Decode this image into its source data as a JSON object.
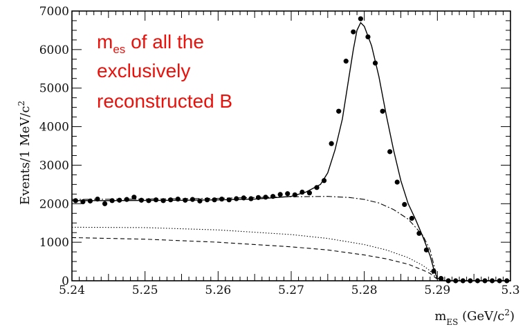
{
  "chart_data": {
    "type": "scatter",
    "title": "",
    "xlabel_main": "m",
    "xlabel_sub": "ES",
    "xlabel_unit_pre": " (GeV/c",
    "xlabel_unit_sup": "2",
    "xlabel_unit_post": ")",
    "ylabel_main": "Events/1 MeV/c",
    "ylabel_sup": "2",
    "xlim": [
      5.24,
      5.3
    ],
    "ylim": [
      0,
      7000
    ],
    "x_ticks": [
      "5.24",
      "5.25",
      "5.26",
      "5.27",
      "5.28",
      "5.29",
      "5.3"
    ],
    "y_ticks": [
      "0",
      "1000",
      "2000",
      "3000",
      "4000",
      "5000",
      "6000",
      "7000"
    ],
    "annotation": {
      "line1_main": "m",
      "line1_sub": "es",
      "line1_rest": " of all the",
      "line2": "exclusively",
      "line3": "reconstructed B"
    },
    "series": [
      {
        "style": "points",
        "x": [
          5.2405,
          5.2415,
          5.2425,
          5.2435,
          5.2445,
          5.2455,
          5.2465,
          5.2475,
          5.2485,
          5.2495,
          5.2505,
          5.2515,
          5.2525,
          5.2535,
          5.2545,
          5.2555,
          5.2565,
          5.2575,
          5.2585,
          5.2595,
          5.2605,
          5.2615,
          5.2625,
          5.2635,
          5.2645,
          5.2655,
          5.2665,
          5.2675,
          5.2685,
          5.2695,
          5.2705,
          5.2715,
          5.2725,
          5.2735,
          5.2745,
          5.2755,
          5.2765,
          5.2775,
          5.2785,
          5.2795,
          5.2805,
          5.2815,
          5.2825,
          5.2835,
          5.2845,
          5.2855,
          5.2865,
          5.2875,
          5.2885,
          5.2895,
          5.2905,
          5.2915,
          5.2925,
          5.2935,
          5.2945,
          5.2955,
          5.2965,
          5.2975,
          5.2985,
          5.2995
        ],
        "y": [
          2080,
          2050,
          2070,
          2120,
          2000,
          2080,
          2090,
          2110,
          2170,
          2090,
          2080,
          2100,
          2080,
          2100,
          2120,
          2090,
          2110,
          2070,
          2100,
          2100,
          2120,
          2100,
          2130,
          2150,
          2130,
          2160,
          2170,
          2190,
          2240,
          2260,
          2230,
          2300,
          2280,
          2420,
          2600,
          3560,
          4400,
          5700,
          6460,
          6800,
          6330,
          5650,
          4400,
          3350,
          2560,
          1980,
          1620,
          1230,
          800,
          250,
          60,
          0,
          0,
          0,
          0,
          0,
          0,
          0,
          0,
          0
        ]
      },
      {
        "style": "solid",
        "x": [
          5.24,
          5.245,
          5.25,
          5.255,
          5.26,
          5.265,
          5.268,
          5.27,
          5.272,
          5.274,
          5.275,
          5.276,
          5.277,
          5.278,
          5.2785,
          5.279,
          5.2795,
          5.28,
          5.281,
          5.282,
          5.283,
          5.284,
          5.285,
          5.286,
          5.287,
          5.288,
          5.289,
          5.2895,
          5.29,
          5.291,
          5.3
        ],
        "y": [
          2080,
          2080,
          2085,
          2090,
          2100,
          2120,
          2160,
          2190,
          2300,
          2500,
          2800,
          3400,
          4200,
          5400,
          6000,
          6500,
          6700,
          6600,
          6100,
          5300,
          4300,
          3400,
          2600,
          2000,
          1600,
          1150,
          650,
          300,
          60,
          0,
          0
        ]
      },
      {
        "style": "dashdot",
        "x": [
          5.24,
          5.25,
          5.26,
          5.265,
          5.27,
          5.275,
          5.278,
          5.28,
          5.282,
          5.284,
          5.286,
          5.288,
          5.289,
          5.29
        ],
        "y": [
          2110,
          2120,
          2140,
          2160,
          2180,
          2190,
          2160,
          2110,
          2020,
          1850,
          1600,
          1180,
          800,
          50
        ]
      },
      {
        "style": "dotted",
        "x": [
          5.24,
          5.25,
          5.26,
          5.27,
          5.275,
          5.28,
          5.283,
          5.286,
          5.288,
          5.289,
          5.29
        ],
        "y": [
          1390,
          1380,
          1320,
          1200,
          1100,
          940,
          800,
          600,
          400,
          260,
          50
        ]
      },
      {
        "style": "dashed",
        "x": [
          5.24,
          5.25,
          5.26,
          5.27,
          5.275,
          5.28,
          5.283,
          5.286,
          5.288,
          5.289,
          5.29
        ],
        "y": [
          1120,
          1080,
          1000,
          880,
          800,
          670,
          570,
          430,
          280,
          190,
          40
        ]
      }
    ]
  }
}
